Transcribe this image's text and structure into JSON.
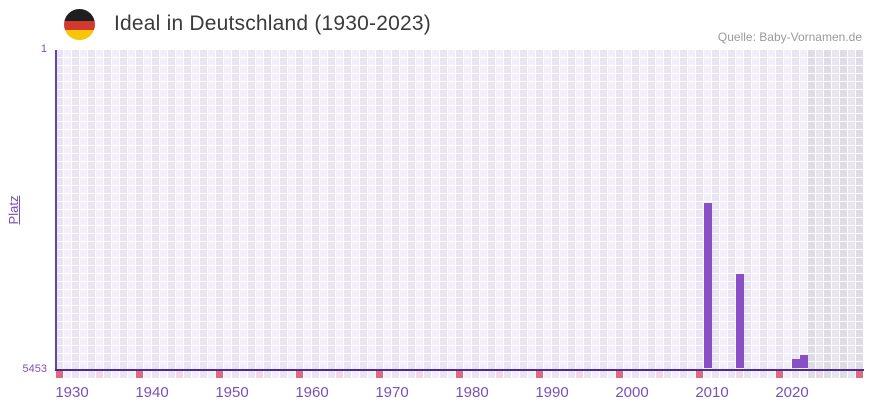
{
  "header": {
    "title": "Ideal in Deutschland (1930-2023)",
    "source": "Quelle: Baby-Vornamen.de",
    "flag_icon": "german-flag-circle",
    "flag_colors": {
      "black": "#1f1f1f",
      "red": "#d33a2f",
      "gold": "#f8c608"
    }
  },
  "chart_data": {
    "type": "bar",
    "title": "Ideal in Deutschland (1930-2023)",
    "xlabel": "",
    "ylabel": "Platz",
    "y_axis": {
      "top_label": "1",
      "bottom_label": "5453",
      "min": 1,
      "max": 5453,
      "inverted": true
    },
    "x_axis": {
      "start_year": 1930,
      "end_year": 2030,
      "data_end_year": 2023,
      "tick_years": [
        1930,
        1940,
        1950,
        1960,
        1970,
        1980,
        1990,
        2000,
        2010,
        2020
      ]
    },
    "series": [
      {
        "name": "Platz",
        "points": [
          {
            "year": 2011,
            "rank": 2600
          },
          {
            "year": 2015,
            "rank": 3820
          },
          {
            "year": 2022,
            "rank": 5260
          },
          {
            "year": 2023,
            "rank": 5190
          }
        ]
      }
    ],
    "future_band": {
      "from_year": 2024,
      "to_year": 2030
    },
    "grid": "on",
    "legend": "none",
    "colors": {
      "bar": "#8950c5",
      "axis_line": "#4b2c8f",
      "tick_label": "#7d50b4",
      "grid_cell_dark": "#e9e3f3",
      "grid_cell_light": "#f2eefa",
      "future_cell_dark": "#dfdce8",
      "future_cell_light": "#e8e5f0",
      "decade_marker": "#e0697d",
      "half_decade_marker": "#f2d8e2",
      "half_decade_marker_future": "#e9d9e1"
    }
  }
}
